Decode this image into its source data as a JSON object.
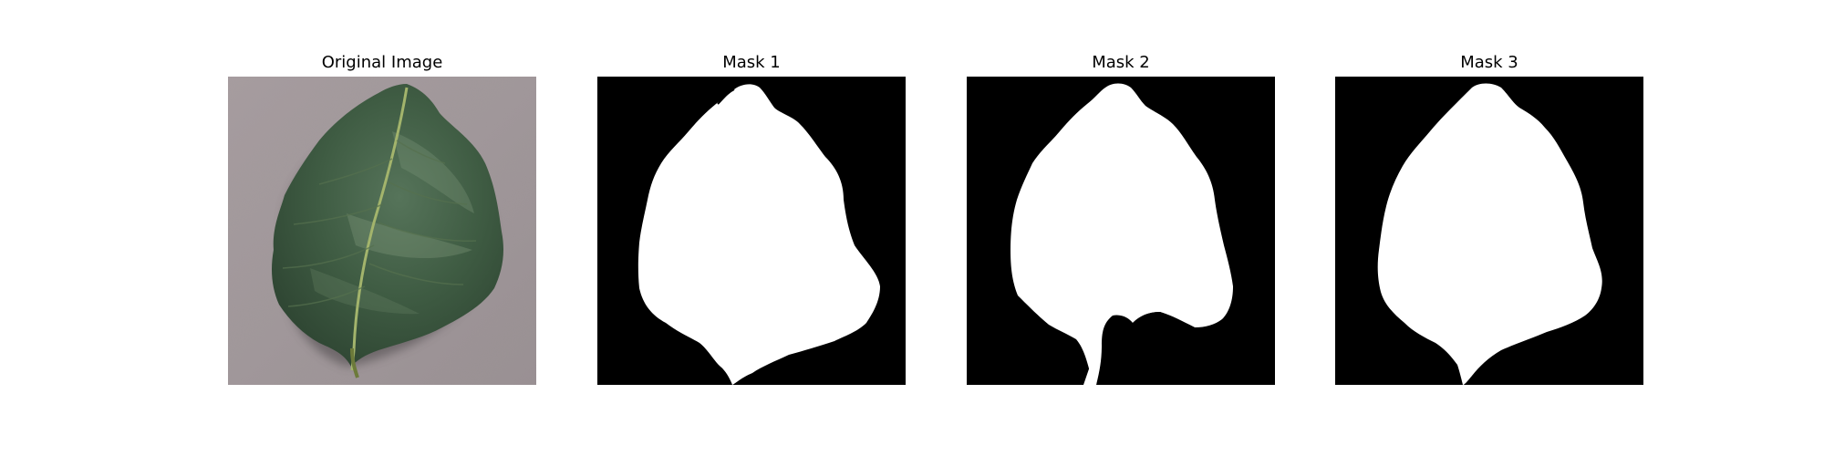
{
  "figure": {
    "panels": [
      {
        "title": "Original Image"
      },
      {
        "title": "Mask 1"
      },
      {
        "title": "Mask 2"
      },
      {
        "title": "Mask 3"
      }
    ]
  },
  "colors": {
    "background": "#ffffff",
    "mask_background": "#000000",
    "mask_foreground": "#ffffff",
    "photo_surface": "#a39a9c",
    "leaf": "#3c5a3e",
    "leaf_highlight": "#6f8a6e",
    "leaf_vein": "#9fb06a",
    "shadow": "#4a4446"
  }
}
